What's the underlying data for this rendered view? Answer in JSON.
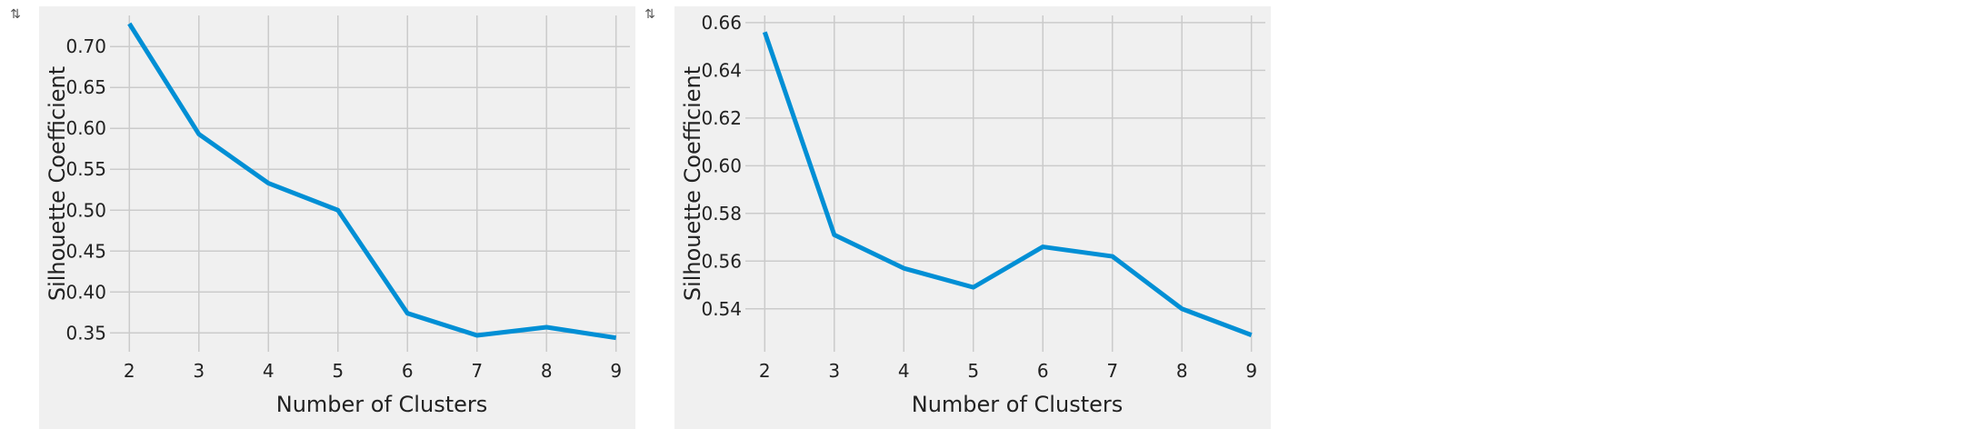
{
  "output_icons": [
    {
      "icon": "output-toggle-icon",
      "glyph": "⇅"
    },
    {
      "icon": "output-toggle-icon",
      "glyph": "⇅"
    }
  ],
  "chart_data": [
    {
      "type": "line",
      "title": "",
      "xlabel": "Number of Clusters",
      "ylabel": "Silhouette Coefficient",
      "x": [
        2,
        3,
        4,
        5,
        6,
        7,
        8,
        9
      ],
      "xlim": [
        1.8,
        9.2
      ],
      "xticks": [
        "2",
        "3",
        "4",
        "5",
        "6",
        "7",
        "8",
        "9"
      ],
      "ylim": [
        0.327,
        0.738
      ],
      "yticks": [
        "0.35",
        "0.40",
        "0.45",
        "0.50",
        "0.55",
        "0.60",
        "0.65",
        "0.70"
      ],
      "grid": true,
      "series": [
        {
          "values": [
            0.728,
            0.593,
            0.533,
            0.5,
            0.374,
            0.347,
            0.357,
            0.344
          ],
          "color": "#008fd5"
        }
      ]
    },
    {
      "type": "line",
      "title": "",
      "xlabel": "Number of Clusters",
      "ylabel": "Silhouette Coefficient",
      "x": [
        2,
        3,
        4,
        5,
        6,
        7,
        8,
        9
      ],
      "xlim": [
        1.8,
        9.2
      ],
      "xticks": [
        "2",
        "3",
        "4",
        "5",
        "6",
        "7",
        "8",
        "9"
      ],
      "ylim": [
        0.522,
        0.663
      ],
      "yticks": [
        "0.54",
        "0.56",
        "0.58",
        "0.60",
        "0.62",
        "0.64",
        "0.66"
      ],
      "grid": true,
      "series": [
        {
          "values": [
            0.656,
            0.571,
            0.557,
            0.549,
            0.566,
            0.562,
            0.54,
            0.529
          ],
          "color": "#008fd5"
        }
      ]
    }
  ]
}
